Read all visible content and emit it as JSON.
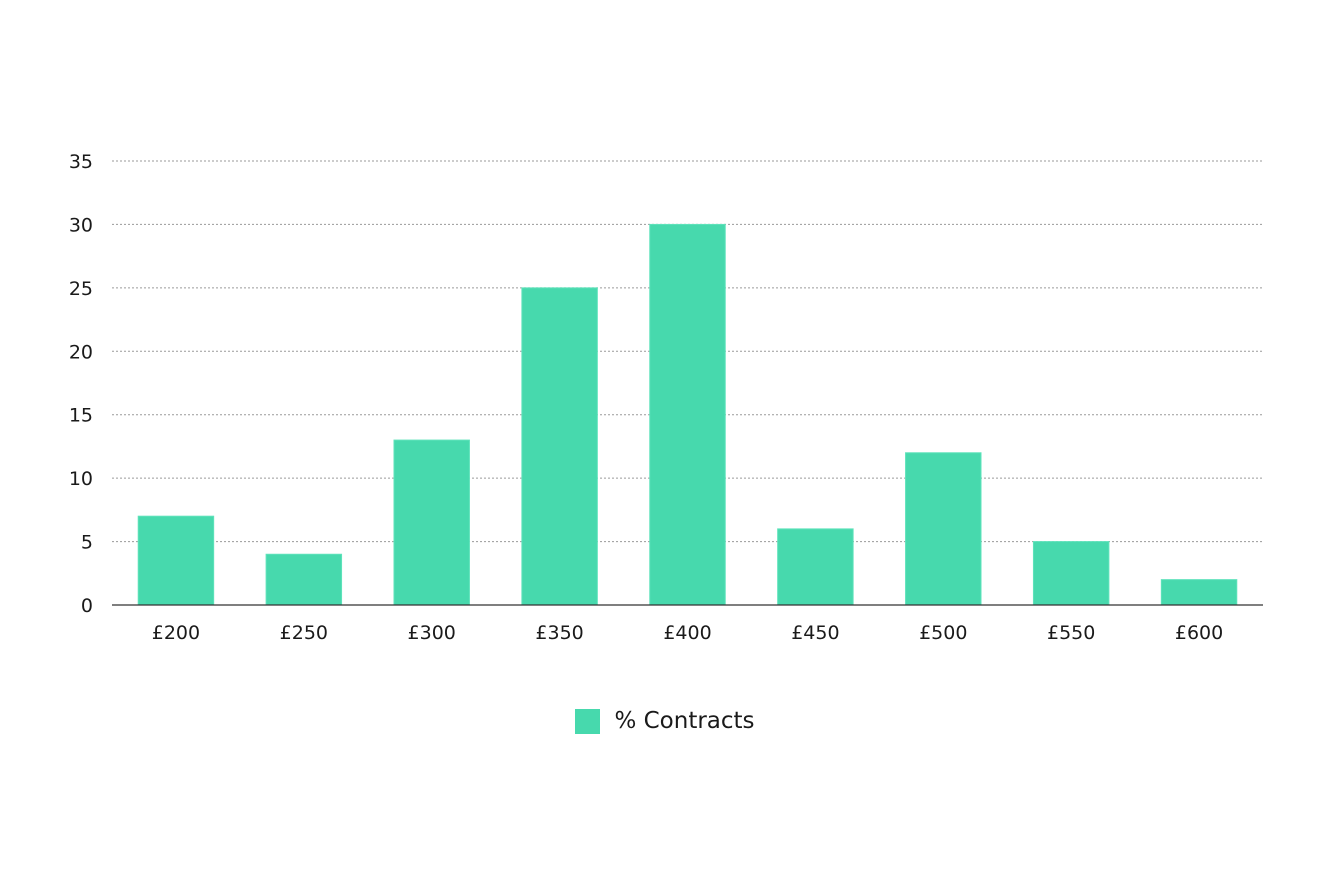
{
  "chart_data": {
    "type": "bar",
    "categories": [
      "£200",
      "£250",
      "£300",
      "£350",
      "£400",
      "£450",
      "£500",
      "£550",
      "£600"
    ],
    "series": [
      {
        "name": "% Contracts",
        "values": [
          7,
          4,
          13,
          25,
          30,
          6,
          12,
          5,
          2
        ],
        "color": "#47d9ad"
      }
    ],
    "title": "",
    "xlabel": "",
    "ylabel": "",
    "ylim": [
      0,
      35
    ],
    "yticks": [
      0,
      5,
      10,
      15,
      20,
      25,
      30,
      35
    ],
    "grid": true,
    "legend_position": "bottom-center"
  }
}
